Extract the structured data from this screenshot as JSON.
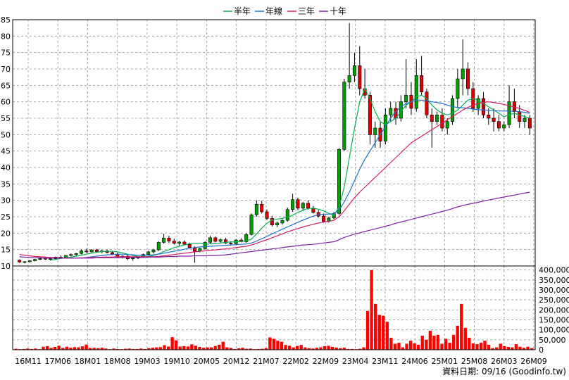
{
  "legend": {
    "items": [
      {
        "name": "半年",
        "color": "#00b050"
      },
      {
        "name": "年線",
        "color": "#1f6fd0"
      },
      {
        "name": "三年",
        "color": "#d81b60"
      },
      {
        "name": "十年",
        "color": "#7b1fa2"
      }
    ]
  },
  "footer": {
    "credit": "資料日期: 09/16 (Goodinfo.tw)"
  },
  "chart_data": [
    {
      "type": "candlestick",
      "title": "",
      "ylim": [
        10,
        85
      ],
      "ytick_step": 5,
      "grid": true,
      "legend_position": "top-center",
      "x_tick_labels": [
        "16M11",
        "17M06",
        "18M01",
        "18M08",
        "19M03",
        "19M10",
        "20M05",
        "20M12",
        "21M07",
        "22M02",
        "22M09",
        "23M04",
        "23M11",
        "24M06",
        "25M01",
        "25M08",
        "26M03",
        "26M09"
      ],
      "up_color": "#00a000",
      "down_color": "#e00000",
      "candles_ohlc": [
        [
          11.8,
          12.0,
          11.0,
          11.2
        ],
        [
          11.2,
          11.5,
          10.8,
          11.3
        ],
        [
          11.3,
          11.8,
          11.1,
          11.6
        ],
        [
          11.6,
          12.2,
          11.4,
          12.0
        ],
        [
          12.0,
          12.6,
          11.8,
          12.3
        ],
        [
          12.3,
          12.8,
          11.9,
          12.1
        ],
        [
          12.1,
          12.5,
          11.7,
          12.2
        ],
        [
          12.2,
          12.9,
          12.0,
          12.7
        ],
        [
          12.7,
          13.2,
          12.4,
          12.6
        ],
        [
          12.6,
          13.4,
          12.5,
          13.2
        ],
        [
          13.2,
          13.8,
          12.9,
          13.5
        ],
        [
          13.5,
          14.0,
          13.0,
          13.8
        ],
        [
          13.8,
          15.0,
          13.5,
          14.6
        ],
        [
          14.6,
          15.3,
          14.0,
          14.3
        ],
        [
          14.3,
          15.1,
          14.1,
          14.9
        ],
        [
          14.9,
          15.2,
          14.2,
          14.4
        ],
        [
          14.4,
          14.9,
          13.9,
          14.6
        ],
        [
          14.6,
          15.0,
          13.8,
          14.1
        ],
        [
          14.1,
          14.5,
          13.3,
          13.6
        ],
        [
          13.6,
          14.0,
          12.5,
          12.8
        ],
        [
          12.8,
          13.3,
          12.3,
          13.0
        ],
        [
          13.0,
          13.4,
          11.8,
          12.2
        ],
        [
          12.2,
          12.7,
          11.6,
          12.4
        ],
        [
          12.4,
          13.0,
          12.1,
          12.8
        ],
        [
          12.8,
          13.8,
          12.5,
          13.5
        ],
        [
          13.5,
          14.6,
          13.2,
          14.3
        ],
        [
          14.3,
          15.2,
          13.8,
          14.9
        ],
        [
          14.9,
          17.5,
          14.6,
          17.2
        ],
        [
          17.2,
          19.8,
          16.8,
          18.5
        ],
        [
          18.5,
          19.2,
          17.0,
          17.6
        ],
        [
          17.6,
          18.3,
          16.5,
          16.9
        ],
        [
          16.9,
          17.6,
          16.2,
          17.3
        ],
        [
          17.3,
          17.8,
          16.4,
          16.6
        ],
        [
          16.6,
          17.1,
          15.4,
          15.6
        ],
        [
          15.6,
          16.0,
          11.0,
          14.5
        ],
        [
          14.5,
          15.6,
          14.2,
          15.3
        ],
        [
          15.3,
          17.5,
          15.0,
          17.2
        ],
        [
          17.2,
          19.2,
          16.8,
          18.6
        ],
        [
          18.6,
          19.0,
          17.2,
          17.5
        ],
        [
          17.5,
          18.4,
          16.9,
          18.0
        ],
        [
          18.0,
          18.6,
          16.7,
          17.0
        ],
        [
          17.0,
          17.5,
          16.2,
          16.8
        ],
        [
          16.8,
          18.2,
          16.5,
          17.9
        ],
        [
          17.9,
          18.5,
          17.2,
          17.4
        ],
        [
          17.4,
          20.0,
          17.1,
          19.6
        ],
        [
          19.6,
          26.0,
          19.3,
          25.6
        ],
        [
          25.6,
          30.0,
          25.0,
          28.8
        ],
        [
          28.8,
          29.8,
          26.0,
          26.5
        ],
        [
          26.5,
          27.2,
          24.0,
          24.5
        ],
        [
          24.5,
          25.3,
          22.0,
          22.5
        ],
        [
          22.5,
          23.5,
          21.8,
          23.1
        ],
        [
          23.1,
          24.2,
          22.6,
          23.9
        ],
        [
          23.9,
          27.8,
          23.5,
          27.2
        ],
        [
          27.2,
          32.0,
          26.5,
          30.2
        ],
        [
          30.2,
          30.8,
          27.0,
          27.6
        ],
        [
          27.6,
          29.5,
          26.8,
          29.1
        ],
        [
          29.1,
          30.0,
          27.2,
          27.6
        ],
        [
          27.6,
          28.3,
          26.0,
          26.3
        ],
        [
          26.3,
          27.0,
          24.8,
          25.2
        ],
        [
          25.2,
          26.0,
          23.2,
          23.6
        ],
        [
          23.6,
          25.0,
          23.2,
          24.6
        ],
        [
          24.6,
          26.5,
          24.2,
          26.0
        ],
        [
          26.0,
          46.0,
          25.5,
          45.5
        ],
        [
          45.5,
          67.0,
          45.0,
          66.0
        ],
        [
          66.0,
          84.0,
          64.0,
          68.0
        ],
        [
          68.0,
          75.0,
          66.0,
          71.0
        ],
        [
          71.0,
          77.0,
          62.0,
          64.0
        ],
        [
          64.0,
          70.0,
          61.0,
          62.0
        ],
        [
          62.0,
          63.0,
          47.0,
          50.0
        ],
        [
          50.0,
          54.0,
          46.0,
          52.0
        ],
        [
          52.0,
          54.0,
          46.0,
          48.0
        ],
        [
          48.0,
          58.0,
          47.0,
          56.0
        ],
        [
          56.0,
          60.0,
          54.0,
          58.0
        ],
        [
          58.0,
          60.0,
          53.0,
          55.0
        ],
        [
          55.0,
          62.0,
          54.0,
          60.0
        ],
        [
          60.0,
          73.0,
          58.0,
          62.0
        ],
        [
          62.0,
          66.0,
          56.0,
          58.0
        ],
        [
          58.0,
          73.0,
          57.0,
          68.0
        ],
        [
          68.0,
          74.0,
          62.0,
          63.0
        ],
        [
          63.0,
          64.0,
          55.0,
          56.0
        ],
        [
          56.0,
          58.0,
          46.0,
          54.0
        ],
        [
          54.0,
          57.0,
          53.0,
          56.0
        ],
        [
          56.0,
          58.0,
          51.0,
          52.0
        ],
        [
          52.0,
          55.0,
          50.0,
          54.0
        ],
        [
          54.0,
          62.0,
          53.0,
          61.0
        ],
        [
          61.0,
          70.0,
          58.0,
          67.0
        ],
        [
          67.0,
          79.0,
          62.0,
          70.0
        ],
        [
          70.0,
          72.0,
          62.0,
          64.0
        ],
        [
          64.0,
          66.0,
          57.0,
          58.0
        ],
        [
          58.0,
          62.0,
          56.0,
          61.0
        ],
        [
          61.0,
          63.0,
          55.0,
          56.0
        ],
        [
          56.0,
          58.0,
          53.0,
          55.0
        ],
        [
          55.0,
          58.0,
          51.0,
          54.0
        ],
        [
          54.0,
          56.0,
          51.0,
          52.0
        ],
        [
          52.0,
          54.0,
          51.0,
          53.0
        ],
        [
          53.0,
          65.0,
          52.0,
          60.0
        ],
        [
          60.0,
          64.0,
          55.0,
          57.0
        ],
        [
          57.0,
          59.0,
          52.0,
          54.0
        ],
        [
          54.0,
          56.0,
          52.0,
          55.0
        ],
        [
          55.0,
          56.0,
          50.0,
          52.0
        ]
      ],
      "series": [
        {
          "name": "半年",
          "color": "#00b050",
          "values": [
            null,
            null,
            null,
            null,
            null,
            null,
            11.8,
            12.0,
            12.3,
            12.5,
            12.7,
            13.0,
            13.3,
            13.6,
            13.9,
            14.2,
            14.4,
            14.5,
            14.5,
            14.3,
            14.0,
            13.6,
            13.2,
            12.9,
            12.8,
            12.9,
            13.2,
            13.7,
            14.4,
            15.0,
            15.6,
            16.0,
            16.4,
            16.8,
            16.9,
            16.9,
            16.7,
            16.7,
            16.8,
            17.0,
            17.2,
            17.3,
            17.4,
            17.5,
            17.6,
            18.2,
            19.8,
            21.5,
            23.0,
            24.0,
            24.3,
            24.5,
            24.8,
            25.5,
            26.3,
            27.0,
            27.5,
            27.6,
            27.3,
            26.8,
            26.0,
            25.5,
            28.0,
            34.0,
            43.0,
            52.0,
            60.0,
            64.0,
            61.0,
            57.0,
            54.0,
            53.0,
            54.0,
            55.0,
            57.0,
            59.0,
            60.0,
            61.5,
            62.0,
            61.0,
            59.0,
            57.5,
            56.5,
            56.0,
            56.5,
            57.5,
            59.0,
            60.5,
            61.0,
            60.5,
            59.5,
            58.5,
            57.5,
            56.5,
            55.5,
            56.0,
            56.5,
            56.0,
            55.5,
            55.0
          ]
        },
        {
          "name": "年線",
          "color": "#1f6fd0",
          "values": [
            null,
            null,
            null,
            null,
            null,
            null,
            null,
            null,
            null,
            null,
            null,
            null,
            12.4,
            12.6,
            12.8,
            13.0,
            13.2,
            13.4,
            13.5,
            13.6,
            13.6,
            13.5,
            13.4,
            13.3,
            13.3,
            13.3,
            13.4,
            13.6,
            13.9,
            14.2,
            14.5,
            14.8,
            15.1,
            15.4,
            15.6,
            15.8,
            15.9,
            16.0,
            16.1,
            16.2,
            16.3,
            16.4,
            16.5,
            16.6,
            16.7,
            17.0,
            17.6,
            18.3,
            19.0,
            19.8,
            20.5,
            21.2,
            21.9,
            22.6,
            23.3,
            24.0,
            24.6,
            25.2,
            25.6,
            25.8,
            25.8,
            25.9,
            27.0,
            29.5,
            32.5,
            36.0,
            39.5,
            42.5,
            45.0,
            47.5,
            50.0,
            52.5,
            55.0,
            57.0,
            58.5,
            59.5,
            60.0,
            60.5,
            60.5,
            60.3,
            60.0,
            59.8,
            59.5,
            59.0,
            58.5,
            58.3,
            58.2,
            58.0,
            57.8,
            57.6,
            57.5,
            57.4,
            57.3,
            57.2,
            57.2,
            57.2,
            57.1,
            57.0,
            56.8,
            56.5
          ]
        },
        {
          "name": "三年",
          "color": "#d81b60",
          "values": [
            13.5,
            13.3,
            13.1,
            12.9,
            12.8,
            12.7,
            12.6,
            12.5,
            12.5,
            12.4,
            12.4,
            12.4,
            12.5,
            12.5,
            12.6,
            12.6,
            12.7,
            12.7,
            12.7,
            12.8,
            12.8,
            12.8,
            12.8,
            12.8,
            12.8,
            12.8,
            12.8,
            12.9,
            13.1,
            13.3,
            13.5,
            13.7,
            13.9,
            14.1,
            14.3,
            14.5,
            14.6,
            14.8,
            14.9,
            15.1,
            15.2,
            15.4,
            15.6,
            15.8,
            16.0,
            16.4,
            16.9,
            17.5,
            18.0,
            18.6,
            19.2,
            19.8,
            20.4,
            20.9,
            21.4,
            21.9,
            22.3,
            22.7,
            23.1,
            23.4,
            23.6,
            23.9,
            25.0,
            26.8,
            28.8,
            30.8,
            32.5,
            34.0,
            35.5,
            37.0,
            38.5,
            40.0,
            41.5,
            43.0,
            44.5,
            46.0,
            47.5,
            48.5,
            49.5,
            50.5,
            51.5,
            52.5,
            53.5,
            54.5,
            55.5,
            56.5,
            57.5,
            58.3,
            59.0,
            59.5,
            59.8,
            60.0,
            59.8,
            59.5,
            59.2,
            58.8,
            58.4,
            58.0,
            57.4,
            56.8
          ]
        },
        {
          "name": "十年",
          "color": "#7b1fa2",
          "values": [
            12.8,
            12.7,
            12.6,
            12.5,
            12.5,
            12.4,
            12.4,
            12.4,
            12.4,
            12.4,
            12.4,
            12.4,
            12.4,
            12.4,
            12.4,
            12.5,
            12.5,
            12.5,
            12.5,
            12.5,
            12.6,
            12.6,
            12.6,
            12.6,
            12.6,
            12.7,
            12.7,
            12.7,
            12.8,
            12.9,
            12.9,
            13.0,
            13.0,
            13.0,
            13.1,
            13.1,
            13.1,
            13.2,
            13.2,
            13.3,
            13.4,
            13.6,
            13.8,
            14.0,
            14.2,
            14.4,
            14.6,
            14.8,
            15.0,
            15.2,
            15.4,
            15.6,
            15.8,
            16.0,
            16.2,
            16.4,
            16.5,
            16.6,
            16.8,
            17.0,
            17.2,
            17.4,
            18.0,
            18.7,
            19.2,
            19.7,
            20.1,
            20.5,
            20.9,
            21.3,
            21.7,
            22.1,
            22.5,
            23.0,
            23.4,
            23.8,
            24.2,
            24.6,
            25.0,
            25.4,
            25.8,
            26.2,
            26.6,
            27.0,
            27.5,
            28.0,
            28.4,
            28.8,
            29.1,
            29.4,
            29.8,
            30.1,
            30.4,
            30.7,
            31.0,
            31.3,
            31.6,
            31.9,
            32.2,
            32.5
          ]
        }
      ]
    },
    {
      "type": "bar",
      "title": "",
      "ylim": [
        0,
        420000
      ],
      "y_tick_labels": [
        "400,000",
        "350,000",
        "300,000",
        "250,000",
        "200,000",
        "150,000",
        "100,000",
        "50,000",
        "0"
      ],
      "y_tick_values": [
        400000,
        350000,
        300000,
        250000,
        200000,
        150000,
        100000,
        50000,
        0
      ],
      "bar_color": "#ff0000",
      "values": [
        5000,
        3000,
        4000,
        6000,
        4000,
        6000,
        3000,
        15000,
        18000,
        9000,
        14000,
        20000,
        9000,
        15000,
        10000,
        13000,
        12000,
        17000,
        26000,
        9000,
        10000,
        8000,
        10000,
        6000,
        3000,
        6000,
        4000,
        3000,
        5000,
        6000,
        4000,
        4000,
        6000,
        4000,
        8000,
        10000,
        12000,
        13000,
        23000,
        16000,
        63000,
        47000,
        16000,
        18000,
        16000,
        27000,
        20000,
        14000,
        10000,
        12000,
        12000,
        19000,
        25000,
        40000,
        12000,
        9000,
        4000,
        7000,
        10000,
        5000,
        6000,
        3000,
        4000,
        5000,
        8000,
        62000,
        55000,
        45000,
        40000,
        24000,
        20000,
        12000,
        19000,
        24000,
        12000,
        8000,
        6000,
        10000,
        12000,
        18000,
        20000,
        14000,
        11000,
        8000,
        10000,
        4000,
        4000,
        3000,
        5000,
        12000,
        195000,
        400000,
        230000,
        175000,
        170000,
        140000,
        60000,
        30000,
        35000,
        12000,
        30000,
        45000,
        32000,
        25000,
        70000,
        50000,
        95000,
        70000,
        75000,
        30000,
        55000,
        35000,
        75000,
        120000,
        230000,
        110000,
        60000,
        32000,
        28000,
        35000,
        45000,
        25000,
        8000,
        12000,
        30000,
        18000,
        14000,
        12000,
        28000,
        15000,
        10000,
        15000,
        8000
      ]
    }
  ]
}
